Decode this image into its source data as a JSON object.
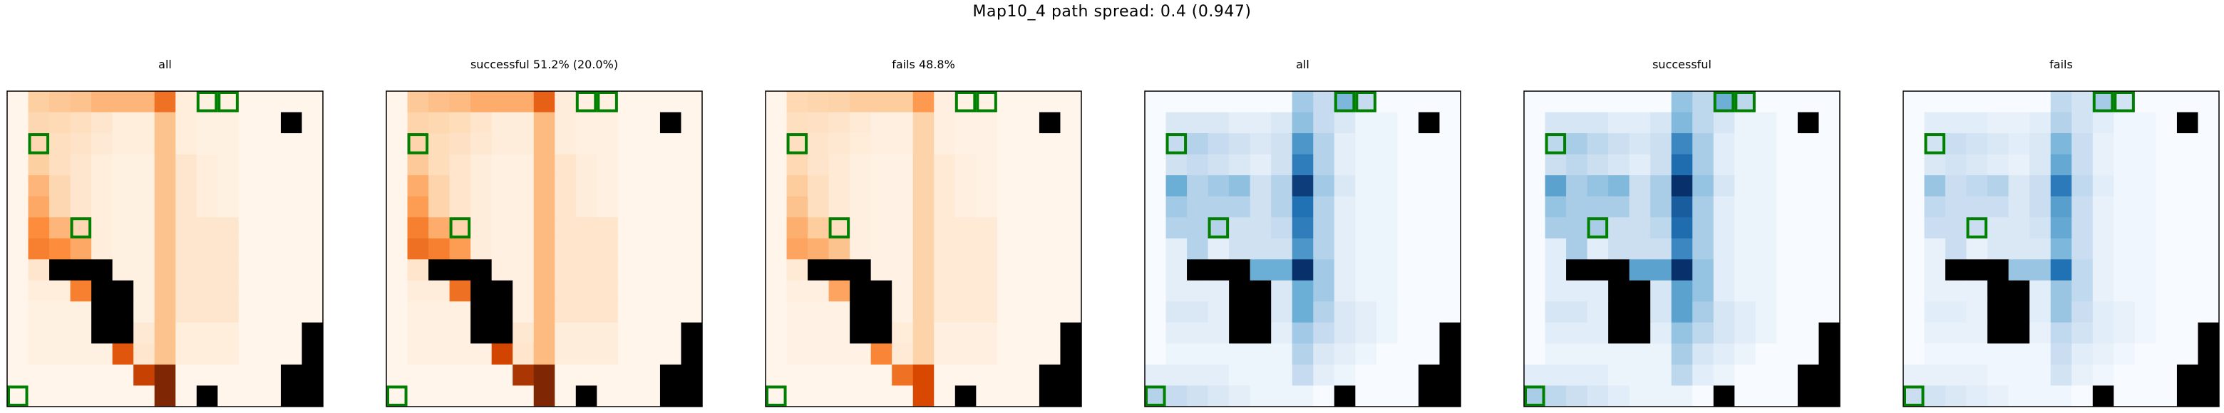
{
  "figure": {
    "suptitle": "Map10_4 path spread: 0.4 (0.947)"
  },
  "chart_data": [
    {
      "type": "heatmap",
      "title": "all",
      "colormap": "Oranges",
      "grid": "15x15",
      "obstacles_color": "#000000",
      "goal_box_color": "#008000",
      "values_scale": "relative 0-1"
    },
    {
      "type": "heatmap",
      "title": "successful 51.2% (20.0%)",
      "colormap": "Oranges",
      "grid": "15x15",
      "obstacles_color": "#000000",
      "goal_box_color": "#008000",
      "values_scale": "relative 0-1"
    },
    {
      "type": "heatmap",
      "title": "fails 48.8%",
      "colormap": "Oranges",
      "grid": "15x15",
      "obstacles_color": "#000000",
      "goal_box_color": "#008000",
      "values_scale": "relative 0-1"
    },
    {
      "type": "heatmap",
      "title": "all",
      "colormap": "Blues",
      "grid": "15x15",
      "obstacles_color": "#000000",
      "goal_box_color": "#008000",
      "values_scale": "relative 0-1"
    },
    {
      "type": "heatmap",
      "title": "successful",
      "colormap": "Blues",
      "grid": "15x15",
      "obstacles_color": "#000000",
      "goal_box_color": "#008000",
      "values_scale": "relative 0-1"
    },
    {
      "type": "heatmap",
      "title": "fails",
      "colormap": "Blues",
      "grid": "15x15",
      "obstacles_color": "#000000",
      "goal_box_color": "#008000",
      "values_scale": "relative 0-1"
    }
  ],
  "grid_layout": {
    "rows": 15,
    "cols": 15,
    "obstacles": [
      [
        1,
        13
      ],
      [
        8,
        2
      ],
      [
        8,
        3
      ],
      [
        8,
        4
      ],
      [
        9,
        4
      ],
      [
        9,
        5
      ],
      [
        10,
        4
      ],
      [
        10,
        5
      ],
      [
        11,
        4
      ],
      [
        11,
        5
      ],
      [
        11,
        14
      ],
      [
        12,
        14
      ],
      [
        13,
        13
      ],
      [
        13,
        14
      ],
      [
        14,
        13
      ],
      [
        14,
        14
      ],
      [
        14,
        9
      ]
    ],
    "goals": [
      [
        0,
        9
      ],
      [
        0,
        10
      ],
      [
        2,
        1
      ],
      [
        6,
        3
      ],
      [
        14,
        0
      ]
    ]
  },
  "heat": {
    "oranges_all": [
      [
        0,
        0.25,
        0.28,
        0.3,
        0.35,
        0.35,
        0.35,
        0.6,
        0.05,
        0.03,
        0.03,
        0,
        0,
        0,
        0
      ],
      [
        0,
        0.2,
        0.18,
        0.15,
        0.1,
        0.05,
        0.05,
        0.3,
        0.05,
        0.03,
        0.03,
        0,
        0,
        0,
        0
      ],
      [
        0,
        0.2,
        0.15,
        0.12,
        0.08,
        0.05,
        0.05,
        0.3,
        0.05,
        0.03,
        0.03,
        0,
        0,
        0,
        0
      ],
      [
        0,
        0.25,
        0.15,
        0.1,
        0.05,
        0.03,
        0.03,
        0.3,
        0.1,
        0.05,
        0.03,
        0,
        0,
        0,
        0
      ],
      [
        0,
        0.35,
        0.2,
        0.1,
        0.05,
        0.03,
        0.03,
        0.3,
        0.1,
        0.05,
        0.03,
        0,
        0,
        0,
        0
      ],
      [
        0,
        0.4,
        0.2,
        0.1,
        0.05,
        0.03,
        0.03,
        0.3,
        0.1,
        0.05,
        0.03,
        0,
        0,
        0,
        0
      ],
      [
        0,
        0.5,
        0.35,
        0.2,
        0.05,
        0.03,
        0.03,
        0.3,
        0.1,
        0.1,
        0.1,
        0,
        0,
        0,
        0
      ],
      [
        0,
        0.55,
        0.5,
        0.4,
        0.05,
        0.03,
        0.03,
        0.3,
        0.1,
        0.1,
        0.1,
        0,
        0,
        0,
        0
      ],
      [
        0,
        0.1,
        0.1,
        0.55,
        0.05,
        0.03,
        0.03,
        0.3,
        0.1,
        0.1,
        0.1,
        0,
        0,
        0,
        0
      ],
      [
        0,
        0.05,
        0.05,
        0.55,
        0.6,
        0.03,
        0.03,
        0.3,
        0.1,
        0.1,
        0.1,
        0,
        0,
        0,
        0
      ],
      [
        0,
        0.03,
        0.03,
        0.03,
        0.6,
        0.03,
        0.03,
        0.3,
        0.1,
        0.1,
        0.1,
        0,
        0,
        0,
        0
      ],
      [
        0,
        0.03,
        0.03,
        0.03,
        0.05,
        0.7,
        0.08,
        0.3,
        0.05,
        0.05,
        0.05,
        0,
        0,
        0,
        0
      ],
      [
        0,
        0.03,
        0.03,
        0.03,
        0.03,
        0.7,
        0.1,
        0.3,
        0.05,
        0.05,
        0.05,
        0,
        0,
        0,
        0
      ],
      [
        0,
        0,
        0,
        0,
        0,
        0,
        0.8,
        1,
        0,
        0,
        0,
        0,
        0,
        0,
        0
      ],
      [
        0,
        0,
        0,
        0,
        0,
        0,
        0,
        1,
        0,
        0,
        0,
        0,
        0,
        0,
        0
      ]
    ],
    "blues_all": [
      [
        0,
        0,
        0,
        0,
        0,
        0,
        0,
        0.35,
        0.25,
        0.45,
        0.25,
        0,
        0,
        0,
        0
      ],
      [
        0,
        0.15,
        0.15,
        0.15,
        0.1,
        0.1,
        0.15,
        0.4,
        0.25,
        0.15,
        0.05,
        0.05,
        0,
        0,
        0
      ],
      [
        0,
        0.25,
        0.3,
        0.25,
        0.2,
        0.15,
        0.2,
        0.6,
        0.3,
        0.1,
        0.05,
        0.05,
        0,
        0,
        0
      ],
      [
        0,
        0.2,
        0.25,
        0.2,
        0.15,
        0.1,
        0.2,
        0.7,
        0.3,
        0.1,
        0.05,
        0.05,
        0,
        0,
        0
      ],
      [
        0,
        0.5,
        0.3,
        0.35,
        0.4,
        0.2,
        0.3,
        0.95,
        0.35,
        0.15,
        0.05,
        0.05,
        0,
        0,
        0
      ],
      [
        0,
        0.35,
        0.3,
        0.3,
        0.3,
        0.2,
        0.3,
        0.75,
        0.3,
        0.1,
        0.05,
        0.05,
        0,
        0,
        0
      ],
      [
        0,
        0.3,
        0.3,
        0.3,
        0.2,
        0.2,
        0.25,
        0.7,
        0.3,
        0.1,
        0.05,
        0.05,
        0,
        0,
        0
      ],
      [
        0,
        0.1,
        0.3,
        0.1,
        0.2,
        0.2,
        0.2,
        0.6,
        0.3,
        0.1,
        0.05,
        0.05,
        0,
        0,
        0
      ],
      [
        0,
        0.1,
        0.2,
        0.5,
        0.5,
        0.5,
        0.5,
        1,
        0.35,
        0.1,
        0.05,
        0.05,
        0,
        0,
        0
      ],
      [
        0,
        0.1,
        0.1,
        0.1,
        0.1,
        0.1,
        0.15,
        0.5,
        0.35,
        0.1,
        0.05,
        0.05,
        0,
        0,
        0
      ],
      [
        0,
        0.15,
        0.15,
        0.1,
        0.1,
        0.1,
        0.15,
        0.5,
        0.3,
        0.15,
        0.1,
        0.05,
        0,
        0,
        0
      ],
      [
        0,
        0.1,
        0.1,
        0.1,
        0.1,
        0.1,
        0.1,
        0.35,
        0.25,
        0.15,
        0.1,
        0.05,
        0,
        0,
        0
      ],
      [
        0,
        0.05,
        0.05,
        0.05,
        0.05,
        0.05,
        0.05,
        0.3,
        0.15,
        0.1,
        0.05,
        0,
        0,
        0,
        0
      ],
      [
        0.1,
        0.1,
        0.1,
        0.1,
        0.05,
        0.05,
        0.05,
        0.25,
        0.1,
        0.05,
        0,
        0,
        0,
        0,
        0
      ],
      [
        0.3,
        0.25,
        0.2,
        0.15,
        0.1,
        0.05,
        0.05,
        0.05,
        0,
        0,
        0,
        0,
        0,
        0,
        0
      ]
    ]
  }
}
